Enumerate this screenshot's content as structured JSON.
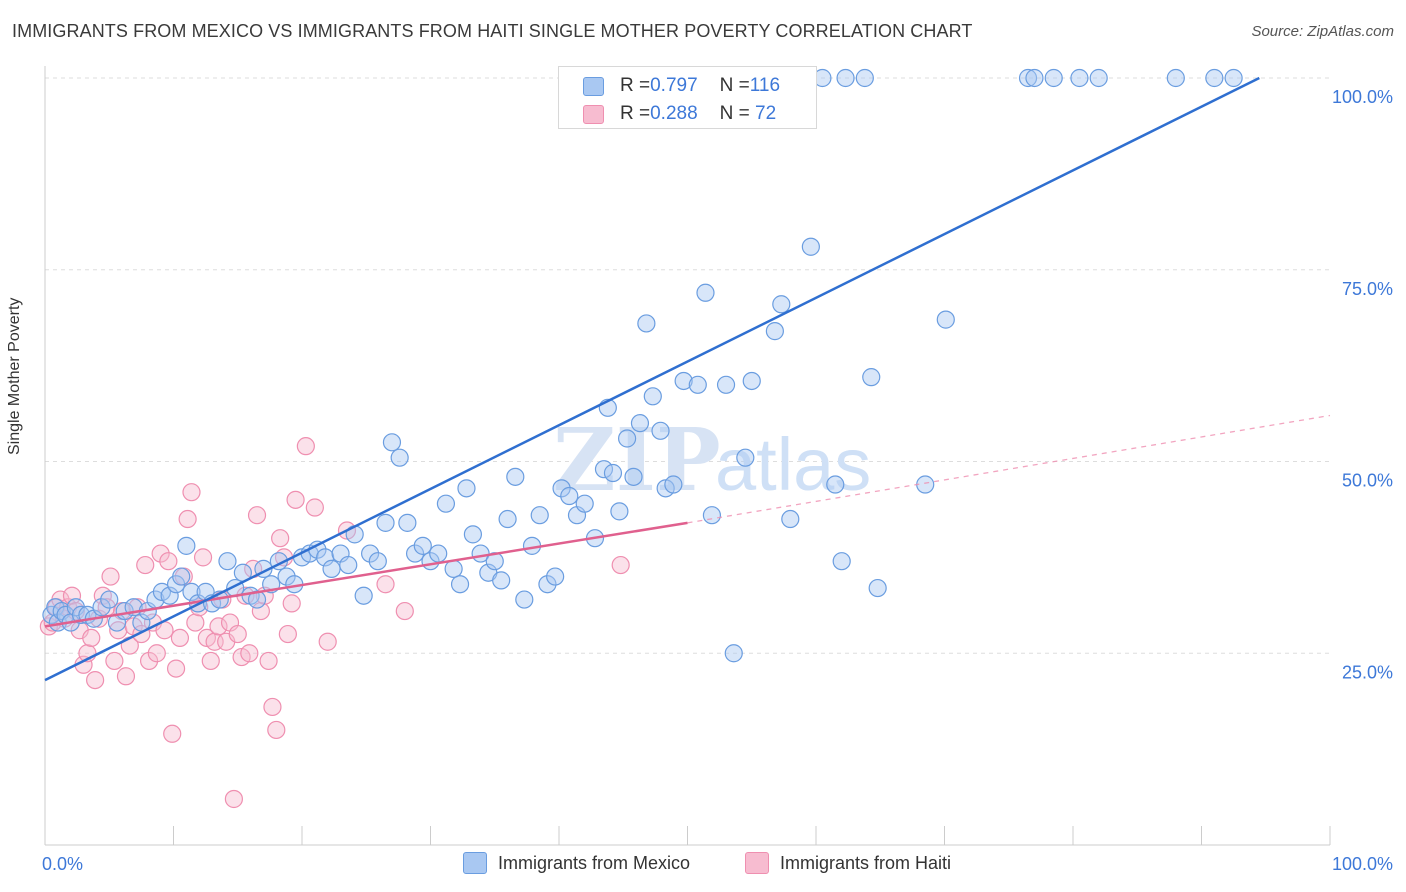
{
  "title": "IMMIGRANTS FROM MEXICO VS IMMIGRANTS FROM HAITI SINGLE MOTHER POVERTY CORRELATION CHART",
  "source": "Source: ZipAtlas.com",
  "watermark": {
    "zip": "ZIP",
    "atlas": "atlas"
  },
  "colors": {
    "mexico_fill": "#a9c8f2",
    "mexico_stroke": "#6a9de0",
    "mexico_line": "#2f6fd0",
    "haiti_fill": "#f7bcd0",
    "haiti_stroke": "#ef8fb0",
    "haiti_line": "#e0608e",
    "tick_label": "#3d78d8",
    "grid": "#dddddd"
  },
  "stats": {
    "mexico": {
      "r_label": "R = ",
      "r_value": "0.797",
      "n_label": "N = ",
      "n_value": "116"
    },
    "haiti": {
      "r_label": "R = ",
      "r_value": "0.288",
      "n_label": "N = ",
      "n_value": " 72"
    }
  },
  "legend": {
    "mexico": "Immigrants from Mexico",
    "haiti": "Immigrants from Haiti"
  },
  "chart_data": {
    "type": "scatter",
    "title": "IMMIGRANTS FROM MEXICO VS IMMIGRANTS FROM HAITI SINGLE MOTHER POVERTY CORRELATION CHART",
    "xlabel": "",
    "ylabel": "Single Mother Poverty",
    "xlim": [
      0,
      100
    ],
    "ylim": [
      0,
      100
    ],
    "x_tick_labels": [
      "0.0%",
      "100.0%"
    ],
    "y_ticks": [
      {
        "value": 25,
        "label": "25.0%"
      },
      {
        "value": 50,
        "label": "50.0%"
      },
      {
        "value": 75,
        "label": "75.0%"
      },
      {
        "value": 100,
        "label": "100.0%"
      }
    ],
    "grid": true,
    "legend_position": "bottom-center",
    "series": [
      {
        "name": "Immigrants from Mexico",
        "trend": {
          "x": [
            0,
            94.5
          ],
          "y": [
            21.5,
            100
          ]
        },
        "points": [
          [
            0.5,
            30
          ],
          [
            0.8,
            31
          ],
          [
            1.0,
            29
          ],
          [
            1.3,
            30.5
          ],
          [
            1.6,
            30
          ],
          [
            2.0,
            29
          ],
          [
            2.4,
            31
          ],
          [
            2.8,
            30
          ],
          [
            3.3,
            30
          ],
          [
            3.8,
            29.5
          ],
          [
            4.4,
            31
          ],
          [
            5.0,
            32
          ],
          [
            5.6,
            29
          ],
          [
            6.2,
            30.5
          ],
          [
            6.9,
            31
          ],
          [
            7.5,
            29
          ],
          [
            8.0,
            30.5
          ],
          [
            8.6,
            32
          ],
          [
            9.1,
            33
          ],
          [
            9.7,
            32.5
          ],
          [
            10.2,
            34
          ],
          [
            10.6,
            35
          ],
          [
            11.0,
            39
          ],
          [
            11.4,
            33
          ],
          [
            11.9,
            31.5
          ],
          [
            12.5,
            33
          ],
          [
            13.0,
            31.5
          ],
          [
            13.6,
            32
          ],
          [
            14.2,
            37
          ],
          [
            14.8,
            33.5
          ],
          [
            15.4,
            35.5
          ],
          [
            16.0,
            32.5
          ],
          [
            16.5,
            32
          ],
          [
            17.0,
            36
          ],
          [
            17.6,
            34
          ],
          [
            18.2,
            37
          ],
          [
            18.8,
            35
          ],
          [
            19.4,
            34
          ],
          [
            20.0,
            37.5
          ],
          [
            20.6,
            38
          ],
          [
            21.2,
            38.5
          ],
          [
            21.8,
            37.5
          ],
          [
            22.3,
            36
          ],
          [
            23.0,
            38
          ],
          [
            23.6,
            36.5
          ],
          [
            24.1,
            40.5
          ],
          [
            24.8,
            32.5
          ],
          [
            25.3,
            38
          ],
          [
            25.9,
            37
          ],
          [
            26.5,
            42
          ],
          [
            27.0,
            52.5
          ],
          [
            27.6,
            50.5
          ],
          [
            28.2,
            42
          ],
          [
            28.8,
            38
          ],
          [
            29.4,
            39
          ],
          [
            30.0,
            37
          ],
          [
            30.6,
            38
          ],
          [
            31.2,
            44.5
          ],
          [
            31.8,
            36
          ],
          [
            32.3,
            34
          ],
          [
            32.8,
            46.5
          ],
          [
            33.3,
            40.5
          ],
          [
            33.9,
            38
          ],
          [
            34.5,
            35.5
          ],
          [
            35.0,
            37
          ],
          [
            35.5,
            34.5
          ],
          [
            36.0,
            42.5
          ],
          [
            36.6,
            48
          ],
          [
            37.3,
            32
          ],
          [
            37.9,
            39
          ],
          [
            38.5,
            43
          ],
          [
            39.1,
            34
          ],
          [
            39.7,
            35
          ],
          [
            40.2,
            46.5
          ],
          [
            40.8,
            45.5
          ],
          [
            41.4,
            43
          ],
          [
            42.0,
            44.5
          ],
          [
            42.8,
            40
          ],
          [
            43.5,
            49
          ],
          [
            43.8,
            57
          ],
          [
            44.2,
            48.5
          ],
          [
            44.7,
            43.5
          ],
          [
            45.3,
            53
          ],
          [
            45.8,
            48
          ],
          [
            46.3,
            55
          ],
          [
            46.8,
            68
          ],
          [
            47.3,
            58.5
          ],
          [
            47.9,
            54
          ],
          [
            48.3,
            46.5
          ],
          [
            48.9,
            47
          ],
          [
            49.7,
            60.5
          ],
          [
            50.8,
            60
          ],
          [
            51.4,
            72
          ],
          [
            51.9,
            43
          ],
          [
            53.0,
            60
          ],
          [
            53.6,
            25
          ],
          [
            54.5,
            50.5
          ],
          [
            55.0,
            60.5
          ],
          [
            56.8,
            67
          ],
          [
            57.3,
            70.5
          ],
          [
            58.0,
            42.5
          ],
          [
            59.6,
            78
          ],
          [
            61.5,
            47
          ],
          [
            62.0,
            37
          ],
          [
            64.3,
            61
          ],
          [
            64.8,
            33.5
          ],
          [
            68.5,
            47
          ],
          [
            70.1,
            68.5
          ],
          [
            76.5,
            100
          ],
          [
            77.0,
            100
          ],
          [
            78.5,
            100
          ],
          [
            80.5,
            100
          ],
          [
            82.0,
            100
          ],
          [
            88.0,
            100
          ],
          [
            91.0,
            100
          ],
          [
            92.5,
            100
          ],
          [
            58.8,
            100
          ],
          [
            60.5,
            100
          ],
          [
            62.3,
            100
          ],
          [
            63.8,
            100
          ]
        ]
      },
      {
        "name": "Immigrants from Haiti",
        "trend": {
          "x": [
            0,
            50
          ],
          "y": [
            28.5,
            42
          ]
        },
        "trend_extension": {
          "x": [
            50,
            100
          ],
          "y": [
            42,
            56
          ]
        },
        "points": [
          [
            0.3,
            28.5
          ],
          [
            0.6,
            29
          ],
          [
            0.9,
            31
          ],
          [
            1.2,
            32
          ],
          [
            1.5,
            29.5
          ],
          [
            1.8,
            31
          ],
          [
            2.1,
            32.5
          ],
          [
            2.4,
            30.5
          ],
          [
            2.7,
            28
          ],
          [
            3.0,
            23.5
          ],
          [
            3.3,
            25
          ],
          [
            3.6,
            27
          ],
          [
            3.9,
            21.5
          ],
          [
            4.2,
            29.5
          ],
          [
            4.5,
            32.5
          ],
          [
            4.8,
            31
          ],
          [
            5.1,
            35
          ],
          [
            5.4,
            24
          ],
          [
            5.7,
            28
          ],
          [
            6.0,
            30.5
          ],
          [
            6.3,
            22
          ],
          [
            6.6,
            26
          ],
          [
            6.9,
            28.5
          ],
          [
            7.2,
            31
          ],
          [
            7.5,
            27.5
          ],
          [
            7.8,
            36.5
          ],
          [
            8.1,
            24
          ],
          [
            8.4,
            29
          ],
          [
            8.7,
            25
          ],
          [
            9.0,
            38
          ],
          [
            9.3,
            28
          ],
          [
            9.6,
            37
          ],
          [
            9.9,
            14.5
          ],
          [
            10.2,
            23
          ],
          [
            10.5,
            27
          ],
          [
            10.8,
            35
          ],
          [
            11.1,
            42.5
          ],
          [
            11.4,
            46
          ],
          [
            11.7,
            29
          ],
          [
            12.0,
            31
          ],
          [
            12.3,
            37.5
          ],
          [
            12.6,
            27
          ],
          [
            12.9,
            24
          ],
          [
            13.2,
            26.5
          ],
          [
            13.5,
            28.5
          ],
          [
            13.8,
            32
          ],
          [
            14.1,
            26.5
          ],
          [
            14.4,
            29
          ],
          [
            14.7,
            6
          ],
          [
            15.0,
            27.5
          ],
          [
            15.3,
            24.5
          ],
          [
            15.6,
            32.5
          ],
          [
            15.9,
            25
          ],
          [
            16.2,
            36
          ],
          [
            16.5,
            43
          ],
          [
            16.8,
            30.5
          ],
          [
            17.1,
            32.5
          ],
          [
            17.4,
            24
          ],
          [
            17.7,
            18
          ],
          [
            18.0,
            15
          ],
          [
            18.3,
            40
          ],
          [
            18.6,
            37.5
          ],
          [
            18.9,
            27.5
          ],
          [
            19.2,
            31.5
          ],
          [
            19.5,
            45
          ],
          [
            20.3,
            52
          ],
          [
            21.0,
            44
          ],
          [
            22.0,
            26.5
          ],
          [
            23.5,
            41
          ],
          [
            26.5,
            34
          ],
          [
            28.0,
            30.5
          ],
          [
            44.8,
            36.5
          ]
        ]
      }
    ]
  }
}
